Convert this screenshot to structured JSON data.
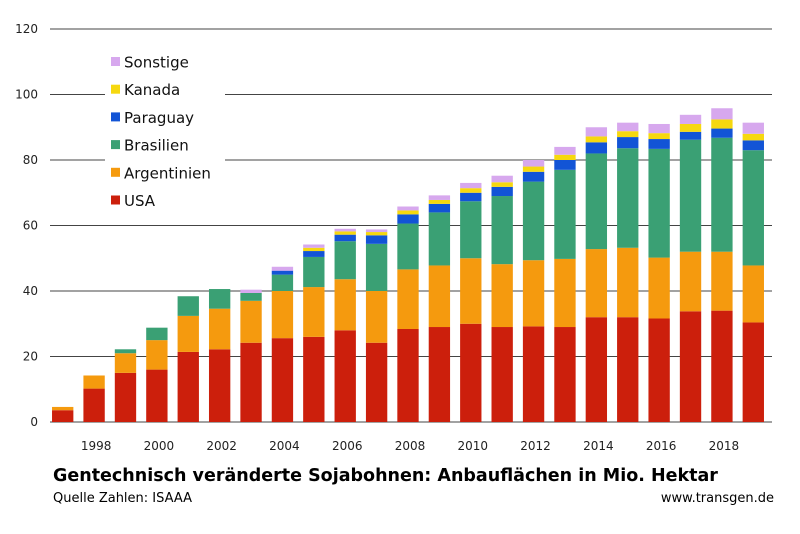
{
  "chart_data": {
    "type": "bar",
    "stacked": true,
    "title": "Gentechnisch veränderte Sojabohnen: Anbauflächen in Mio. Hektar",
    "source": "Quelle Zahlen: ISAAA",
    "website": "www.transgen.de",
    "years": [
      1997,
      1998,
      1999,
      2000,
      2001,
      2002,
      2003,
      2004,
      2005,
      2006,
      2007,
      2008,
      2009,
      2010,
      2011,
      2012,
      2013,
      2014,
      2015,
      2016,
      2017,
      2018,
      2019
    ],
    "x_tick_labels": [
      "1998",
      "2000",
      "2002",
      "2004",
      "2006",
      "2008",
      "2010",
      "2012",
      "2014",
      "2016",
      "2018"
    ],
    "y_ticks": [
      "0",
      "20",
      "40",
      "60",
      "80",
      "100",
      "120"
    ],
    "ylim": [
      0,
      120
    ],
    "legend_position": "top-left",
    "grid": false,
    "series": [
      {
        "name": "USA",
        "color": "#cc1f0c",
        "values": [
          3.6,
          10.2,
          15.0,
          16.0,
          21.4,
          22.2,
          24.2,
          25.6,
          26.0,
          28.0,
          24.2,
          28.4,
          29.0,
          30.0,
          29.0,
          29.2,
          29.0,
          32.0,
          32.0,
          31.6,
          33.8,
          34.0,
          30.4
        ]
      },
      {
        "name": "Argentinien",
        "color": "#f59a0e",
        "values": [
          1.0,
          4.0,
          6.0,
          9.0,
          11.0,
          12.4,
          12.8,
          14.4,
          15.2,
          15.6,
          15.8,
          18.2,
          18.8,
          20.0,
          19.2,
          20.2,
          20.8,
          20.8,
          21.2,
          18.6,
          18.2,
          18.0,
          17.4
        ]
      },
      {
        "name": "Brasilien",
        "color": "#3aa074",
        "values": [
          0,
          0,
          1.2,
          3.8,
          6.0,
          6.0,
          2.4,
          5.0,
          9.2,
          11.6,
          14.4,
          14.0,
          16.2,
          17.4,
          20.8,
          24.0,
          27.2,
          29.2,
          30.4,
          33.2,
          34.2,
          34.8,
          35.2
        ]
      },
      {
        "name": "Paraguay",
        "color": "#1254d6",
        "values": [
          0,
          0,
          0,
          0,
          0,
          0,
          0,
          1.2,
          1.8,
          2.0,
          2.6,
          2.8,
          2.6,
          2.6,
          2.8,
          3.0,
          3.0,
          3.4,
          3.4,
          3.0,
          2.4,
          2.8,
          3.0
        ]
      },
      {
        "name": "Kanada",
        "color": "#f6d80f",
        "values": [
          0,
          0,
          0,
          0,
          0,
          0,
          0,
          0,
          1.0,
          1.0,
          1.0,
          1.2,
          1.2,
          1.4,
          1.4,
          1.6,
          1.6,
          1.8,
          1.8,
          1.8,
          2.4,
          2.8,
          2.0
        ]
      },
      {
        "name": "Sonstige",
        "color": "#d7a8ee",
        "values": [
          0,
          0,
          0,
          0,
          0,
          0,
          1.0,
          1.2,
          1.0,
          0.8,
          0.8,
          1.2,
          1.4,
          1.6,
          2.0,
          2.0,
          2.4,
          2.8,
          2.6,
          2.8,
          2.8,
          3.4,
          3.4
        ]
      }
    ]
  }
}
